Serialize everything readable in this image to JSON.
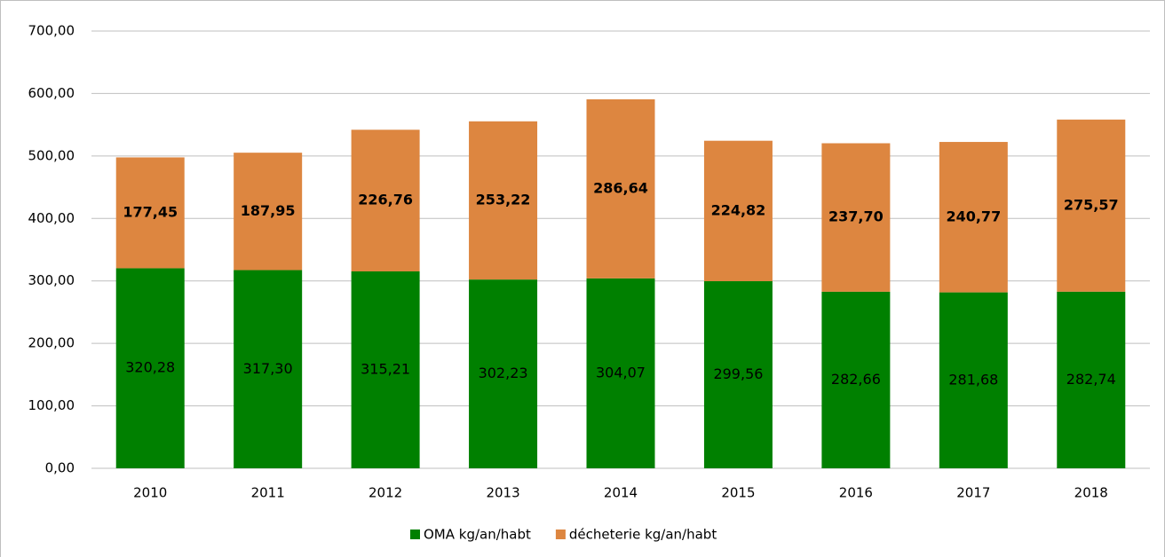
{
  "chart_data": {
    "type": "stacked_bar",
    "categories": [
      "2010",
      "2011",
      "2012",
      "2013",
      "2014",
      "2015",
      "2016",
      "2017",
      "2018"
    ],
    "series": [
      {
        "name": "OMA kg/an/habt",
        "color": "#008000",
        "values": [
          320.28,
          317.3,
          315.21,
          302.23,
          304.07,
          299.56,
          282.66,
          281.68,
          282.74
        ],
        "value_labels": [
          "320,28",
          "317,30",
          "315,21",
          "302,23",
          "304,07",
          "299,56",
          "282,66",
          "281,68",
          "282,74"
        ]
      },
      {
        "name": "décheterie kg/an/habt",
        "color": "#dd8640",
        "values": [
          177.45,
          187.95,
          226.76,
          253.22,
          286.64,
          224.82,
          237.7,
          240.77,
          275.57
        ],
        "value_labels": [
          "177,45",
          "187,95",
          "226,76",
          "253,22",
          "286,64",
          "224,82",
          "237,70",
          "240,77",
          "275,57"
        ]
      }
    ],
    "ylim": [
      0,
      700
    ],
    "yticks": [
      {
        "value": 0,
        "label": "0,00"
      },
      {
        "value": 100,
        "label": "100,00"
      },
      {
        "value": 200,
        "label": "200,00"
      },
      {
        "value": 300,
        "label": "300,00"
      },
      {
        "value": 400,
        "label": "400,00"
      },
      {
        "value": 500,
        "label": "500,00"
      },
      {
        "value": 600,
        "label": "600,00"
      },
      {
        "value": 700,
        "label": "700,00"
      }
    ],
    "grid": true,
    "legend": "bottom"
  }
}
